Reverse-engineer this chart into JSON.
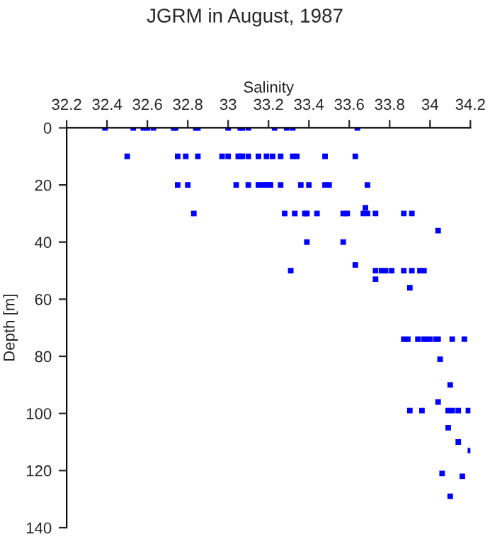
{
  "chart_data": {
    "type": "scatter",
    "title": "JGRM in August, 1987",
    "xlabel": "Salinity",
    "ylabel": "Depth [m]",
    "xlim": [
      32.2,
      34.2
    ],
    "xticks": [
      32.2,
      32.4,
      32.6,
      32.8,
      {
        "value": 33.0,
        "label": "33"
      },
      33.2,
      33.4,
      33.6,
      33.8,
      {
        "value": 34.0,
        "label": "34"
      },
      34.2
    ],
    "ylim": [
      140,
      0
    ],
    "yticks": [
      0,
      20,
      40,
      60,
      80,
      100,
      120,
      140
    ],
    "grid": false,
    "marker": "square",
    "series": [
      {
        "color": "#0000ff",
        "x": [
          32.39,
          32.53,
          32.58,
          32.6,
          32.63,
          32.73,
          32.74,
          32.84,
          32.85,
          33.0,
          33.06,
          33.07,
          33.1,
          33.23,
          33.29,
          33.32,
          33.64,
          32.5,
          32.75,
          32.79,
          32.85,
          32.97,
          33.0,
          33.05,
          33.06,
          33.07,
          33.1,
          33.15,
          33.19,
          33.22,
          33.26,
          33.32,
          33.34,
          33.48,
          33.63,
          32.75,
          32.8,
          33.04,
          33.1,
          33.15,
          33.17,
          33.19,
          33.2,
          33.21,
          33.26,
          33.36,
          33.4,
          33.48,
          33.5,
          33.69,
          32.83,
          33.28,
          33.33,
          33.38,
          33.39,
          33.44,
          33.57,
          33.59,
          33.67,
          33.69,
          33.73,
          33.87,
          33.91,
          33.68,
          34.04,
          33.39,
          33.57,
          33.63,
          33.31,
          33.73,
          33.76,
          33.78,
          33.81,
          33.87,
          33.91,
          33.95,
          33.97,
          33.73,
          33.9,
          33.87,
          33.89,
          33.94,
          33.97,
          33.98,
          34.0,
          34.03,
          34.04,
          34.11,
          34.17,
          34.05,
          34.1,
          34.04,
          33.9,
          33.96,
          34.09,
          34.11,
          34.14,
          34.19,
          34.09,
          34.14,
          34.2,
          34.06,
          34.16,
          34.1
        ],
        "values": [
          0,
          0,
          0,
          0,
          0,
          0,
          0,
          0,
          0,
          0,
          0,
          0,
          0,
          0,
          0,
          0,
          0,
          10,
          10,
          10,
          10,
          10,
          10,
          10,
          10,
          10,
          10,
          10,
          10,
          10,
          10,
          10,
          10,
          10,
          10,
          20,
          20,
          20,
          20,
          20,
          20,
          20,
          20,
          20,
          20,
          20,
          20,
          20,
          20,
          20,
          30,
          30,
          30,
          30,
          30,
          30,
          30,
          30,
          30,
          30,
          30,
          30,
          30,
          28,
          36,
          40,
          40,
          48,
          50,
          50,
          50,
          50,
          50,
          50,
          50,
          50,
          50,
          53,
          56,
          74,
          74,
          74,
          74,
          74,
          74,
          74,
          74,
          74,
          74,
          81,
          90,
          96,
          99,
          99,
          99,
          99,
          99,
          99,
          105,
          110,
          113,
          121,
          122,
          129
        ]
      }
    ]
  }
}
